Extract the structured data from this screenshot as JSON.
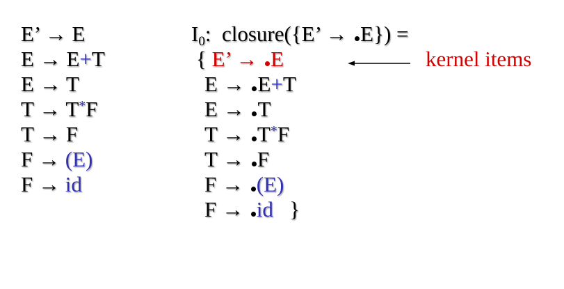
{
  "grammar": {
    "r1": {
      "lhs": "E’",
      "arrow": "→",
      "rhs": "E"
    },
    "r2": {
      "lhs": "E",
      "arrow": "→",
      "a": "E",
      "plus": "+",
      "b": "T"
    },
    "r3": {
      "lhs": "E",
      "arrow": "→",
      "rhs": "T"
    },
    "r4": {
      "lhs": "T",
      "arrow": "→",
      "a": "T",
      "star": "*",
      "b": "F"
    },
    "r5": {
      "lhs": "T",
      "arrow": "→",
      "rhs": "F"
    },
    "r6": {
      "lhs": "F",
      "arrow": "→",
      "rhs": "(E)"
    },
    "r7": {
      "lhs": "F",
      "arrow": "→",
      "rhs": "id"
    }
  },
  "closure": {
    "title_i": "I",
    "title_sub": "0",
    "title_text": ":  closure({E’ → ",
    "title_e": "E}) =",
    "open_brace": "{ ",
    "kernel": {
      "lhs": "E’",
      "arrow": "→",
      "rhs": "E"
    },
    "items": {
      "i1": {
        "lhs": "E",
        "arrow": "→",
        "a": "E",
        "plus": "+",
        "b": "T"
      },
      "i2": {
        "lhs": "E",
        "arrow": "→",
        "rhs": "T"
      },
      "i3": {
        "lhs": "T",
        "arrow": "→",
        "a": "T",
        "star": "*",
        "b": "F"
      },
      "i4": {
        "lhs": "T",
        "arrow": "→",
        "rhs": "F"
      },
      "i5": {
        "lhs": "F",
        "arrow": "→",
        "rhs": "(E)"
      },
      "i6": {
        "lhs": "F",
        "arrow": "→",
        "rhs": "id"
      }
    },
    "close_brace": "}"
  },
  "kernel_label": "kernel items",
  "colors": {
    "terminal": "#3030b0",
    "kernel": "#d40000",
    "text": "#000000"
  }
}
